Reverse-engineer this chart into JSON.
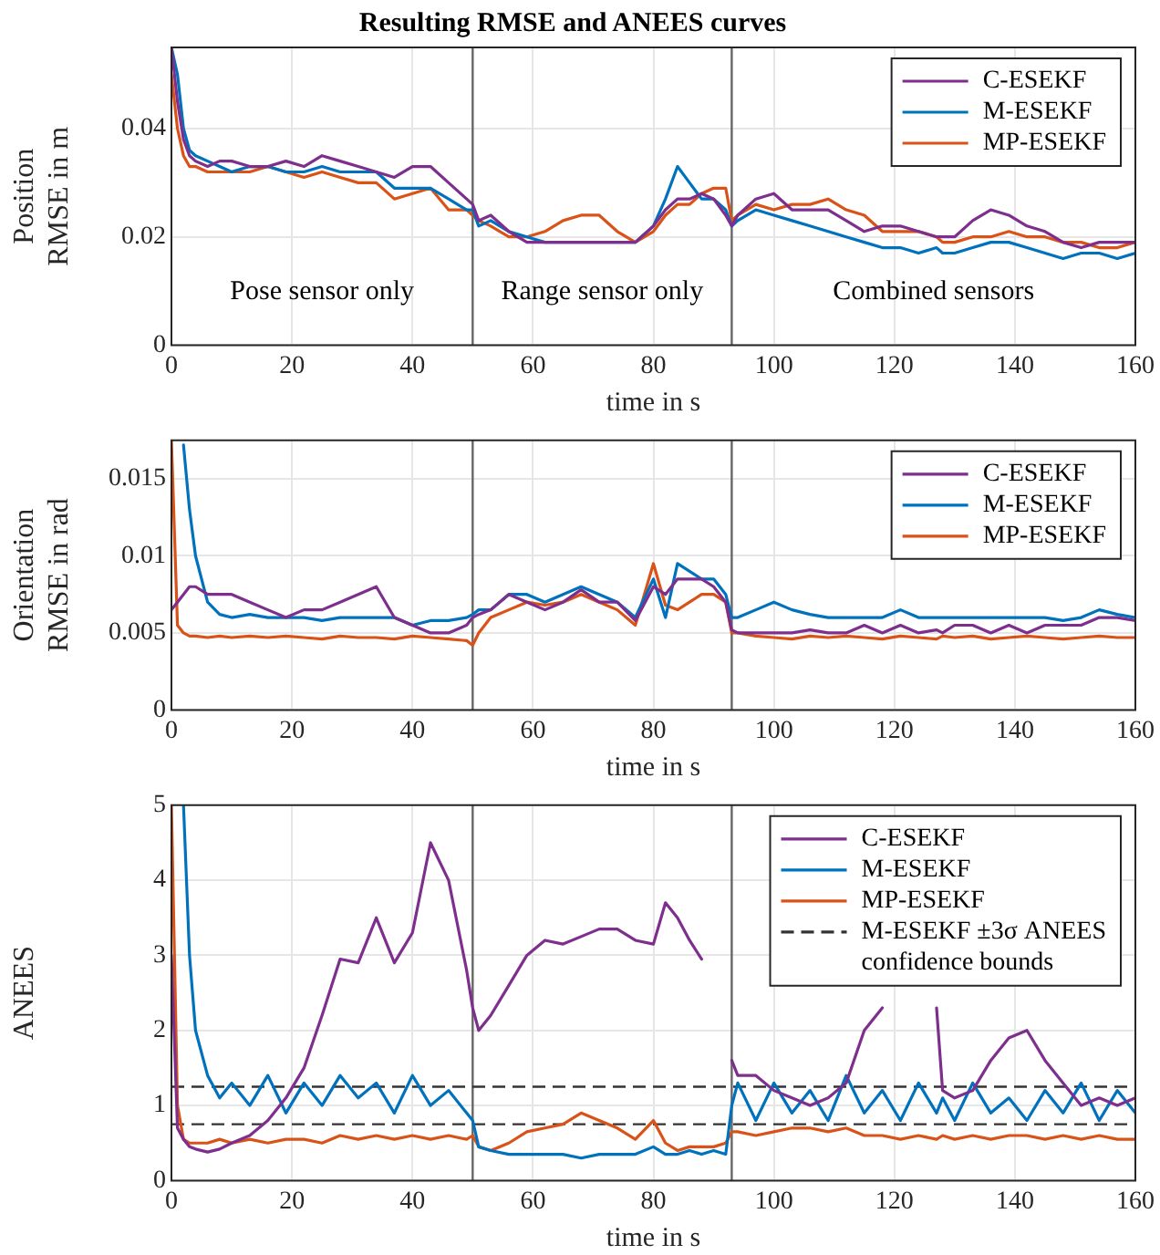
{
  "chart_data": [
    {
      "type": "line",
      "title": "Resulting RMSE and ANEES curves",
      "xlabel": "time in s",
      "ylabel": "Position\nRMSE in m",
      "x": [
        0,
        1,
        2,
        3,
        4,
        6,
        8,
        10,
        13,
        16,
        19,
        22,
        25,
        28,
        31,
        34,
        37,
        40,
        43,
        46,
        49,
        50,
        51,
        53,
        56,
        59,
        62,
        65,
        68,
        71,
        74,
        77,
        80,
        82,
        84,
        86,
        88,
        90,
        92,
        93,
        94,
        97,
        100,
        103,
        106,
        109,
        112,
        115,
        118,
        121,
        124,
        127,
        128,
        130,
        133,
        136,
        139,
        142,
        145,
        148,
        151,
        154,
        157,
        160
      ],
      "series": [
        {
          "name": "C-ESEKF",
          "color": "#7e2f8e",
          "values": [
            0.055,
            0.045,
            0.038,
            0.035,
            0.034,
            0.033,
            0.034,
            0.034,
            0.033,
            0.033,
            0.034,
            0.033,
            0.035,
            0.034,
            0.033,
            0.032,
            0.031,
            0.033,
            0.033,
            0.03,
            0.027,
            0.026,
            0.023,
            0.024,
            0.021,
            0.019,
            0.019,
            0.019,
            0.019,
            0.019,
            0.019,
            0.019,
            0.022,
            0.025,
            0.027,
            0.027,
            0.028,
            0.027,
            0.024,
            0.022,
            0.024,
            0.027,
            0.028,
            0.025,
            0.025,
            0.025,
            0.023,
            0.021,
            0.022,
            0.022,
            0.021,
            0.02,
            0.02,
            0.02,
            0.023,
            0.025,
            0.024,
            0.022,
            0.021,
            0.019,
            0.018,
            0.019,
            0.019,
            0.019
          ]
        },
        {
          "name": "M-ESEKF",
          "color": "#0072bd",
          "values": [
            0.055,
            0.05,
            0.04,
            0.036,
            0.035,
            0.034,
            0.033,
            0.032,
            0.033,
            0.033,
            0.032,
            0.032,
            0.033,
            0.032,
            0.032,
            0.032,
            0.029,
            0.029,
            0.029,
            0.027,
            0.025,
            0.025,
            0.022,
            0.023,
            0.021,
            0.02,
            0.019,
            0.019,
            0.019,
            0.019,
            0.019,
            0.019,
            0.022,
            0.027,
            0.033,
            0.03,
            0.027,
            0.027,
            0.025,
            0.022,
            0.023,
            0.025,
            0.024,
            0.023,
            0.022,
            0.021,
            0.02,
            0.019,
            0.018,
            0.018,
            0.017,
            0.018,
            0.017,
            0.017,
            0.018,
            0.019,
            0.019,
            0.018,
            0.017,
            0.016,
            0.017,
            0.017,
            0.016,
            0.017
          ]
        },
        {
          "name": "MP-ESEKF",
          "color": "#d95319",
          "values": [
            0.05,
            0.04,
            0.035,
            0.033,
            0.033,
            0.032,
            0.032,
            0.032,
            0.032,
            0.033,
            0.032,
            0.031,
            0.032,
            0.031,
            0.03,
            0.03,
            0.027,
            0.028,
            0.029,
            0.025,
            0.025,
            0.024,
            0.023,
            0.022,
            0.02,
            0.02,
            0.021,
            0.023,
            0.024,
            0.024,
            0.021,
            0.019,
            0.021,
            0.024,
            0.026,
            0.026,
            0.028,
            0.029,
            0.029,
            0.023,
            0.024,
            0.026,
            0.025,
            0.026,
            0.026,
            0.027,
            0.025,
            0.024,
            0.021,
            0.021,
            0.021,
            0.02,
            0.019,
            0.019,
            0.02,
            0.02,
            0.021,
            0.02,
            0.02,
            0.019,
            0.019,
            0.018,
            0.018,
            0.019
          ]
        }
      ],
      "xlim": [
        0,
        160
      ],
      "xticks": [
        0,
        20,
        40,
        60,
        80,
        100,
        120,
        140,
        160
      ],
      "ylim": [
        0,
        0.055
      ],
      "yticks": [
        0,
        0.02,
        0.04
      ],
      "ref_lines": [
        {
          "axis": "x",
          "value": 50,
          "color": "#666666"
        },
        {
          "axis": "x",
          "value": 93,
          "color": "#666666"
        }
      ],
      "annotations": [
        "Pose sensor only",
        "Range sensor only",
        "Combined sensors"
      ],
      "grid": true,
      "legend": "top right",
      "marker": "none",
      "line_style": "solid"
    },
    {
      "type": "line",
      "xlabel": "time in s",
      "ylabel": "Orientation\nRMSE in rad",
      "x": [
        0,
        1,
        2,
        3,
        4,
        6,
        8,
        10,
        13,
        16,
        19,
        22,
        25,
        28,
        31,
        34,
        37,
        40,
        43,
        46,
        49,
        50,
        51,
        53,
        56,
        59,
        62,
        65,
        68,
        71,
        74,
        77,
        80,
        82,
        84,
        86,
        88,
        90,
        92,
        93,
        94,
        97,
        100,
        103,
        106,
        109,
        112,
        115,
        118,
        121,
        124,
        127,
        128,
        130,
        133,
        136,
        139,
        142,
        145,
        148,
        151,
        154,
        157,
        160
      ],
      "series": [
        {
          "name": "C-ESEKF",
          "color": "#7e2f8e",
          "values": [
            0.0065,
            0.007,
            0.0075,
            0.008,
            0.008,
            0.0075,
            0.0075,
            0.0075,
            0.007,
            0.0065,
            0.006,
            0.0065,
            0.0065,
            0.007,
            0.0075,
            0.008,
            0.006,
            0.0055,
            0.005,
            0.005,
            0.0055,
            0.006,
            0.0062,
            0.0065,
            0.0075,
            0.007,
            0.0065,
            0.007,
            0.0078,
            0.007,
            0.007,
            0.0058,
            0.008,
            0.0075,
            0.0085,
            0.0085,
            0.0085,
            0.008,
            0.007,
            0.0052,
            0.005,
            0.005,
            0.005,
            0.005,
            0.0052,
            0.005,
            0.005,
            0.0055,
            0.005,
            0.0055,
            0.005,
            0.0052,
            0.005,
            0.0055,
            0.0055,
            0.005,
            0.0055,
            0.005,
            0.0055,
            0.0055,
            0.0055,
            0.006,
            0.006,
            0.0058
          ]
        },
        {
          "name": "M-ESEKF",
          "color": "#0072bd",
          "values": [
            null,
            null,
            0.0172,
            0.013,
            0.01,
            0.007,
            0.0062,
            0.006,
            0.0062,
            0.006,
            0.006,
            0.006,
            0.0058,
            0.006,
            0.006,
            0.006,
            0.006,
            0.0055,
            0.0058,
            0.0058,
            0.006,
            0.0062,
            0.0065,
            0.0065,
            0.0075,
            0.0075,
            0.007,
            0.0075,
            0.008,
            0.0075,
            0.007,
            0.006,
            0.0085,
            0.006,
            0.0095,
            0.009,
            0.0085,
            0.0085,
            0.0075,
            0.006,
            0.006,
            0.0065,
            0.007,
            0.0065,
            0.0062,
            0.006,
            0.006,
            0.006,
            0.006,
            0.0065,
            0.006,
            0.006,
            0.006,
            0.006,
            0.006,
            0.006,
            0.006,
            0.006,
            0.006,
            0.0058,
            0.006,
            0.0065,
            0.0062,
            0.006
          ]
        },
        {
          "name": "MP-ESEKF",
          "color": "#d95319",
          "values": [
            0.0175,
            0.0055,
            0.005,
            0.0048,
            0.0048,
            0.0047,
            0.0048,
            0.0047,
            0.0048,
            0.0047,
            0.0048,
            0.0047,
            0.0046,
            0.0048,
            0.0047,
            0.0047,
            0.0046,
            0.0048,
            0.0047,
            0.0046,
            0.0045,
            0.0042,
            0.005,
            0.006,
            0.0065,
            0.007,
            0.0068,
            0.007,
            0.0075,
            0.007,
            0.0065,
            0.0055,
            0.0095,
            0.0068,
            0.0065,
            0.007,
            0.0075,
            0.0075,
            0.007,
            0.005,
            0.005,
            0.0048,
            0.0047,
            0.0046,
            0.0048,
            0.0047,
            0.0048,
            0.0047,
            0.0046,
            0.0048,
            0.0047,
            0.0046,
            0.0048,
            0.0047,
            0.0048,
            0.0046,
            0.0047,
            0.0048,
            0.0047,
            0.0046,
            0.0047,
            0.0048,
            0.0047,
            0.0047
          ]
        }
      ],
      "xlim": [
        0,
        160
      ],
      "xticks": [
        0,
        20,
        40,
        60,
        80,
        100,
        120,
        140,
        160
      ],
      "ylim": [
        0,
        0.0175
      ],
      "yticks": [
        0,
        0.005,
        0.01,
        0.015
      ],
      "ref_lines": [
        {
          "axis": "x",
          "value": 50,
          "color": "#666666"
        },
        {
          "axis": "x",
          "value": 93,
          "color": "#666666"
        }
      ],
      "grid": true,
      "legend": "top right",
      "marker": "none",
      "line_style": "solid"
    },
    {
      "type": "line",
      "xlabel": "time in s",
      "ylabel": "ANEES",
      "x": [
        0,
        1,
        2,
        3,
        4,
        6,
        8,
        10,
        13,
        16,
        19,
        22,
        25,
        28,
        31,
        34,
        37,
        40,
        43,
        46,
        49,
        50,
        51,
        53,
        56,
        59,
        62,
        65,
        68,
        71,
        74,
        77,
        80,
        82,
        84,
        86,
        88,
        90,
        92,
        93,
        94,
        97,
        100,
        103,
        106,
        109,
        112,
        115,
        118,
        121,
        124,
        127,
        128,
        130,
        133,
        136,
        139,
        142,
        145,
        148,
        151,
        154,
        157,
        160
      ],
      "series": [
        {
          "name": "C-ESEKF",
          "color": "#7e2f8e",
          "values": [
            3,
            0.7,
            0.55,
            0.45,
            0.42,
            0.38,
            0.42,
            0.5,
            0.6,
            0.8,
            1.1,
            1.5,
            2.2,
            2.95,
            2.9,
            3.5,
            2.9,
            3.3,
            4.5,
            4.0,
            2.8,
            2.3,
            2.0,
            2.2,
            2.6,
            3.0,
            3.2,
            3.15,
            3.25,
            3.35,
            3.35,
            3.2,
            3.15,
            3.7,
            3.5,
            3.2,
            2.95,
            null,
            null,
            1.6,
            1.4,
            1.4,
            1.2,
            1.1,
            1.0,
            1.1,
            1.3,
            2.0,
            2.3,
            null,
            null,
            2.3,
            1.2,
            1.1,
            1.2,
            1.6,
            1.9,
            2.0,
            1.6,
            1.3,
            1.0,
            1.1,
            1.0,
            1.1
          ]
        },
        {
          "name": "M-ESEKF",
          "color": "#0072bd",
          "values": [
            null,
            null,
            5,
            3,
            2,
            1.4,
            1.1,
            1.3,
            1.0,
            1.4,
            0.9,
            1.3,
            1.0,
            1.4,
            1.1,
            1.3,
            0.9,
            1.4,
            1.0,
            1.2,
            0.9,
            0.8,
            0.45,
            0.4,
            0.35,
            0.35,
            0.35,
            0.35,
            0.3,
            0.35,
            0.35,
            0.35,
            0.45,
            0.35,
            0.35,
            0.4,
            0.35,
            0.4,
            0.35,
            1.0,
            1.3,
            0.8,
            1.3,
            0.9,
            1.2,
            0.8,
            1.4,
            0.9,
            1.2,
            0.8,
            1.3,
            0.9,
            1.1,
            0.8,
            1.3,
            0.9,
            1.1,
            0.8,
            1.2,
            0.9,
            1.3,
            0.8,
            1.2,
            0.9
          ]
        },
        {
          "name": "MP-ESEKF",
          "color": "#d95319",
          "values": [
            5,
            1.0,
            0.55,
            0.5,
            0.5,
            0.5,
            0.55,
            0.5,
            0.55,
            0.5,
            0.55,
            0.55,
            0.5,
            0.6,
            0.55,
            0.6,
            0.55,
            0.6,
            0.55,
            0.6,
            0.55,
            0.6,
            0.45,
            0.4,
            0.5,
            0.65,
            0.7,
            0.75,
            0.9,
            0.8,
            0.7,
            0.55,
            0.8,
            0.5,
            0.4,
            0.45,
            0.45,
            0.45,
            0.5,
            0.65,
            0.65,
            0.6,
            0.65,
            0.7,
            0.7,
            0.65,
            0.7,
            0.6,
            0.6,
            0.55,
            0.6,
            0.55,
            0.6,
            0.55,
            0.6,
            0.55,
            0.6,
            0.6,
            0.55,
            0.6,
            0.55,
            0.6,
            0.55,
            0.55
          ]
        }
      ],
      "xlim": [
        0,
        160
      ],
      "xticks": [
        0,
        20,
        40,
        60,
        80,
        100,
        120,
        140,
        160
      ],
      "ylim": [
        0,
        5
      ],
      "yticks": [
        0,
        1,
        2,
        3,
        4,
        5
      ],
      "ref_lines": [
        {
          "axis": "x",
          "value": 50,
          "color": "#666666"
        },
        {
          "axis": "x",
          "value": 93,
          "color": "#666666"
        },
        {
          "axis": "y",
          "value": 1.25,
          "label": "M-ESEKF ±3σ ANEES confidence bounds",
          "color": "#333333",
          "line_style": "dashed"
        },
        {
          "axis": "y",
          "value": 0.75,
          "color": "#333333",
          "line_style": "dashed"
        }
      ],
      "grid": true,
      "legend": "top right",
      "marker": "none",
      "line_style": "solid"
    }
  ]
}
